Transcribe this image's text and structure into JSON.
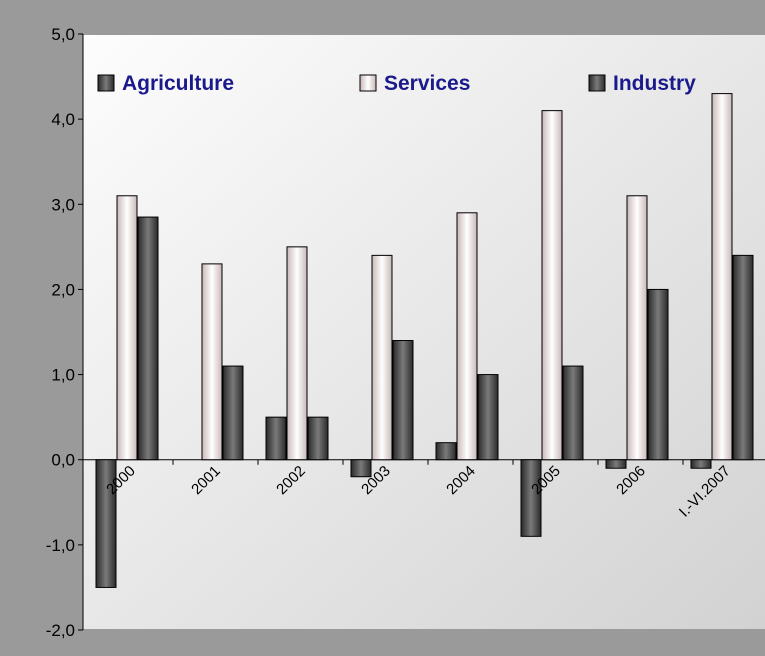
{
  "colors": {
    "agriculture": "#4a4a4a",
    "services": "#f6ecec",
    "industry": "#505050",
    "legend_text": "#1a1a8c",
    "frame": "#9a9a9a",
    "plot_bg_start": "#fdfdfd",
    "plot_bg_end": "#d2d2d2"
  },
  "legend": {
    "agriculture": "Agriculture",
    "services": "Services",
    "industry": "Industry"
  },
  "chart_data": {
    "type": "bar",
    "title": "",
    "xlabel": "",
    "ylabel": "",
    "categories": [
      "2000",
      "2001",
      "2002",
      "2003",
      "2004",
      "2005",
      "2006",
      "I.-VI.2007"
    ],
    "series": [
      {
        "name": "Agriculture",
        "values": [
          -1.5,
          0.0,
          0.5,
          -0.2,
          0.2,
          -0.9,
          -0.1,
          -0.1
        ]
      },
      {
        "name": "Services",
        "values": [
          3.1,
          2.3,
          2.5,
          2.4,
          2.9,
          4.1,
          3.1,
          4.3
        ]
      },
      {
        "name": "Industry",
        "values": [
          2.85,
          1.1,
          0.5,
          1.4,
          1.0,
          1.1,
          2.0,
          2.4
        ]
      }
    ],
    "ylim": [
      -2.0,
      5.0
    ],
    "yticks": [
      "-2,0",
      "-1,0",
      "0,0",
      "1,0",
      "2,0",
      "3,0",
      "4,0",
      "5,0"
    ],
    "grid": false,
    "legend_position": "top"
  }
}
